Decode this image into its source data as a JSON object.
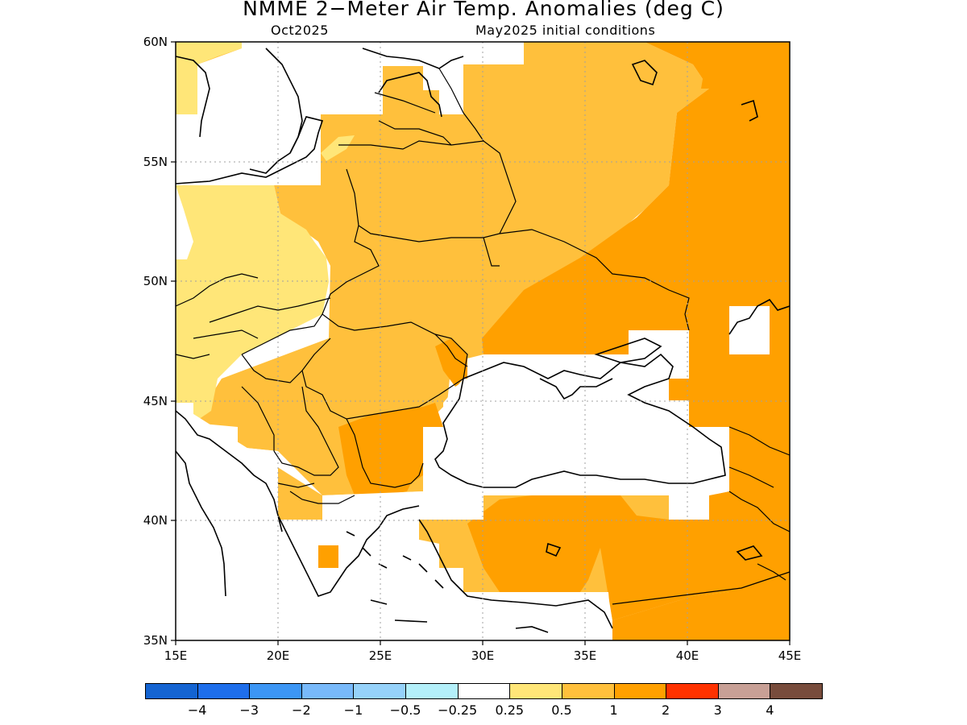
{
  "title": "NMME 2−Meter Air Temp. Anomalies (deg C)",
  "subtitle_left": "Oct2025",
  "subtitle_right": "May2025 initial conditions",
  "lat_labels": [
    "60N",
    "55N",
    "50N",
    "45N",
    "40N",
    "35N"
  ],
  "lon_labels": [
    "15E",
    "20E",
    "25E",
    "30E",
    "35E",
    "40E",
    "45E"
  ],
  "colorbar": {
    "colors": [
      "#1464d2",
      "#1e6eeb",
      "#3c96f5",
      "#78b9fa",
      "#96d2fa",
      "#b4f0fa",
      "#ffffff",
      "#ffe678",
      "#ffc03c",
      "#ffa000",
      "#ff3200",
      "#c8a096",
      "#784c3c"
    ],
    "labels": [
      "−4",
      "−3",
      "−2",
      "−1",
      "−0.5",
      "−0.25",
      "0.25",
      "0.5",
      "1",
      "2",
      "3",
      "4"
    ]
  },
  "palette": {
    "light_yellow": "#ffe678",
    "light_orange": "#ffc03c",
    "orange": "#ffa000",
    "outline": "#000000",
    "grid": "#a0a0a0"
  }
}
